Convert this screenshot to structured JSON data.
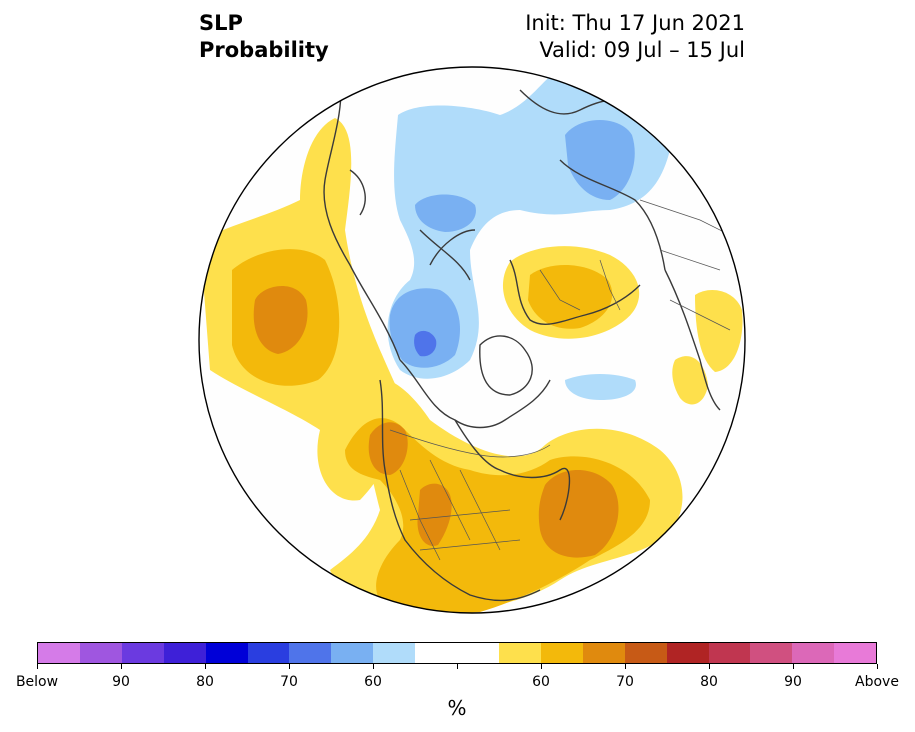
{
  "title": {
    "variable": "SLP",
    "product": "Probability",
    "init": "Init: Thu 17 Jun 2021",
    "valid": "Valid: 09 Jul – 15 Jul"
  },
  "colorbar": {
    "colors": [
      "#d57be8",
      "#9f56e0",
      "#6b3ae0",
      "#3e20d8",
      "#0000d8",
      "#2a3ee0",
      "#4f74ea",
      "#79b0f2",
      "#b0dcfa",
      "#ffffff",
      "#ffffff",
      "#fee04c",
      "#f3b90b",
      "#e08a0e",
      "#c75a16",
      "#b02424",
      "#c03650",
      "#d05080",
      "#dc68b8",
      "#e87ad8"
    ],
    "tick_labels": [
      "Below",
      "90",
      "80",
      "70",
      "60",
      "",
      "60",
      "70",
      "80",
      "90",
      "Above"
    ],
    "unit": "%"
  },
  "map": {
    "projection": "north-polar-stereographic",
    "above_normal_color_60": "#fee04c",
    "above_normal_color_70": "#f3b90b",
    "above_normal_color_80": "#e08a0e",
    "above_normal_color_90": "#c75a16",
    "below_normal_color_60": "#b0dcfa",
    "below_normal_color_70": "#79b0f2",
    "below_normal_color_80": "#4f74ea",
    "near_normal_color": "#fefefe"
  }
}
